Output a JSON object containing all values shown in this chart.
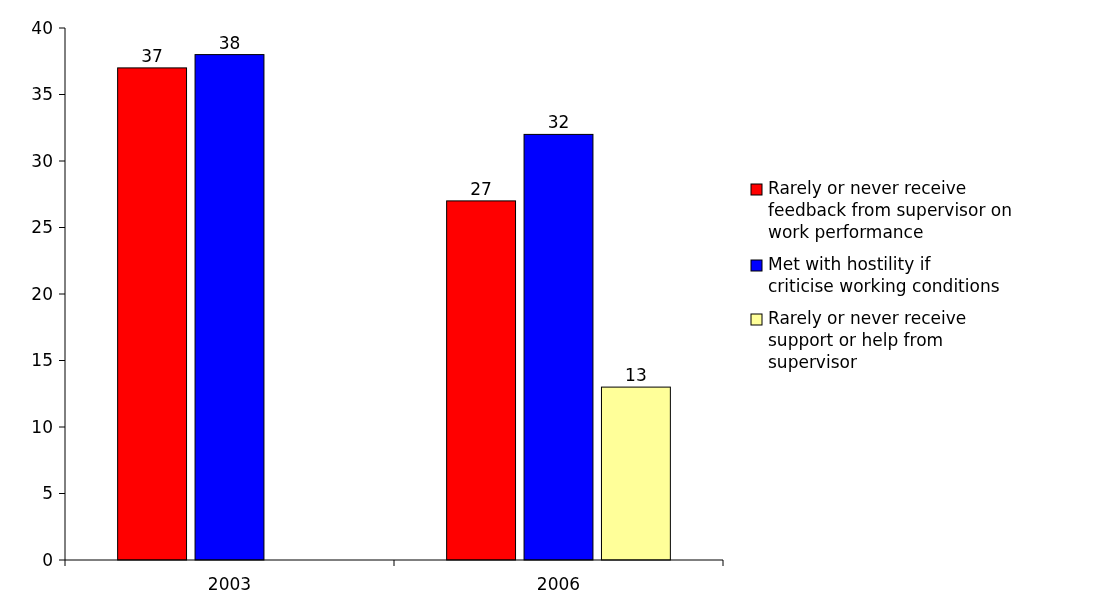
{
  "chart_data": {
    "type": "bar",
    "categories": [
      "2003",
      "2006"
    ],
    "series": [
      {
        "name": "Rarely or never receive feedback from supervisor on work performance",
        "color": "#ff0000",
        "values": [
          37,
          27
        ]
      },
      {
        "name": "Met with hostility if criticise working conditions",
        "color": "#0000ff",
        "values": [
          38,
          32
        ]
      },
      {
        "name": "Rarely or never receive support or help from supervisor",
        "color": "#ffff99",
        "values": [
          null,
          13
        ]
      }
    ],
    "ylim": [
      0,
      40
    ],
    "yticks": [
      0,
      5,
      10,
      15,
      20,
      25,
      30,
      35,
      40
    ],
    "data_labels": true,
    "grid": false,
    "legend": "right"
  }
}
